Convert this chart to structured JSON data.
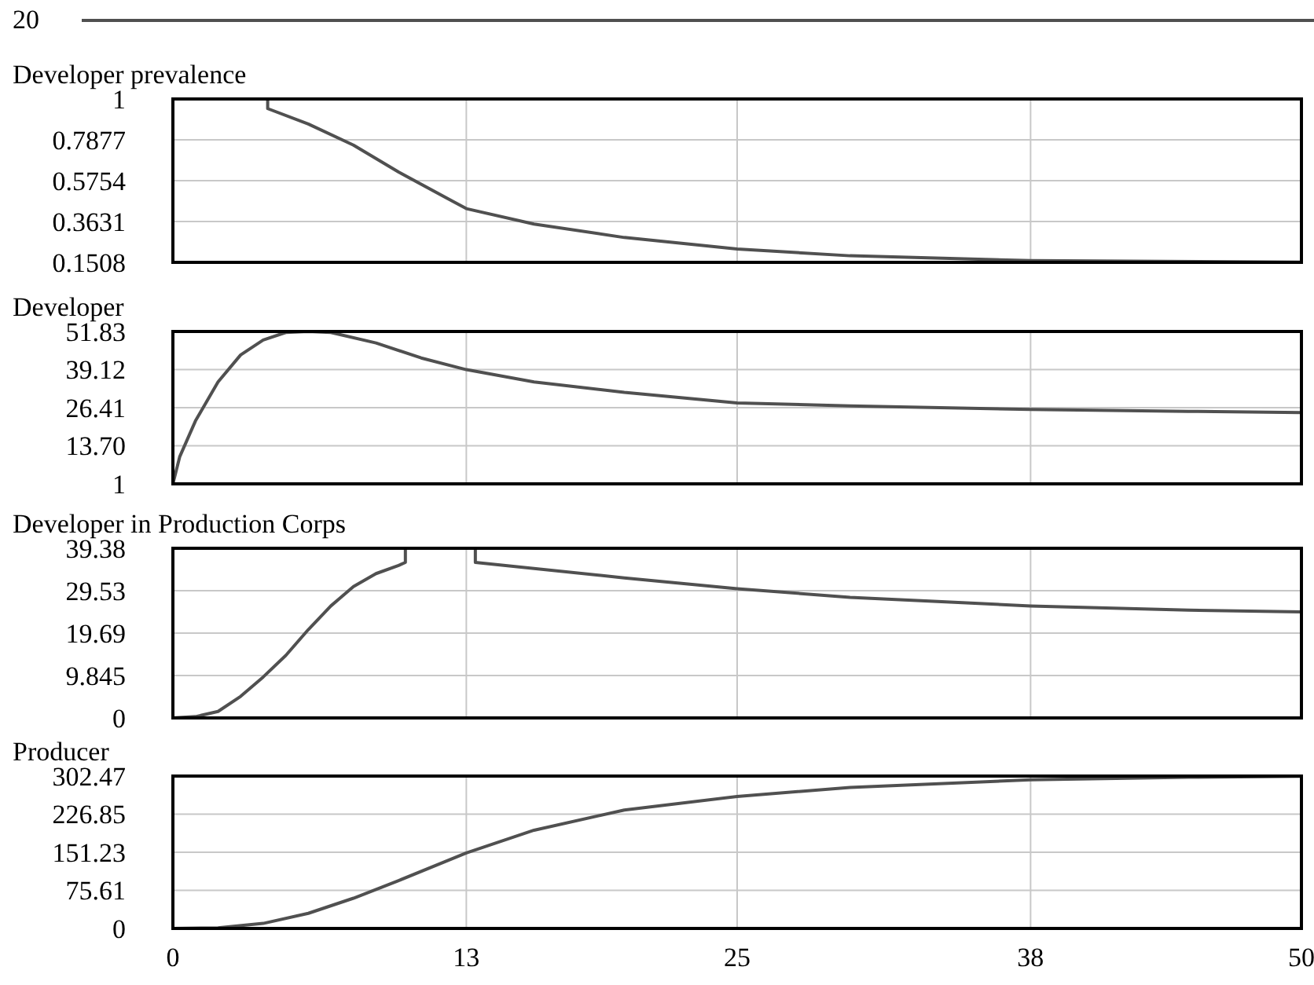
{
  "chart_data": [
    {
      "type": "line",
      "title": "Developer prevalence",
      "annotations": [
        "20"
      ],
      "xlim": [
        0,
        50
      ],
      "xticks": [
        0,
        13,
        25,
        38,
        50
      ],
      "ylim": [
        0.1508,
        1
      ],
      "yticks": [
        0.1508,
        0.3631,
        0.5754,
        0.7877,
        1
      ],
      "grid": true,
      "tick_labels": "y",
      "series": [
        {
          "color": "#505050",
          "x": [
            0,
            4.2,
            4.2,
            6,
            8,
            10,
            13,
            16,
            20,
            25,
            30,
            38,
            50
          ],
          "values": [
            1,
            1,
            0.95,
            0.87,
            0.76,
            0.62,
            0.43,
            0.35,
            0.28,
            0.22,
            0.185,
            0.16,
            0.152
          ]
        }
      ]
    },
    {
      "type": "line",
      "title": "Developer",
      "xlim": [
        0,
        50
      ],
      "xticks": [
        0,
        13,
        25,
        38,
        50
      ],
      "ylim": [
        1,
        51.83
      ],
      "yticks": [
        1,
        {
          "value": 13.7,
          "label": "13.70"
        },
        26.41,
        39.12,
        51.83
      ],
      "grid": true,
      "tick_labels": "y",
      "series": [
        {
          "color": "#505050",
          "x": [
            0,
            0.3,
            1,
            2,
            3,
            4,
            5,
            6,
            7,
            9,
            11,
            13,
            16,
            20,
            25,
            30,
            38,
            45,
            50
          ],
          "values": [
            1,
            10,
            22,
            35,
            44,
            49,
            51.5,
            51.83,
            51.5,
            48,
            43,
            39.1,
            35,
            31.5,
            28,
            27,
            25.8,
            25.2,
            24.8
          ]
        }
      ]
    },
    {
      "type": "line",
      "title": "Developer in Production Corps",
      "xlim": [
        0,
        50
      ],
      "xticks": [
        0,
        13,
        25,
        38,
        50
      ],
      "ylim": [
        0,
        39.38
      ],
      "yticks": [
        0,
        9.845,
        19.69,
        29.53,
        39.38
      ],
      "grid": true,
      "tick_labels": "y",
      "series": [
        {
          "color": "#505050",
          "x": [
            0,
            1,
            2,
            3,
            4,
            5,
            6,
            7,
            8,
            9,
            10,
            10.3,
            10.3,
            13.4,
            13.4,
            20,
            25,
            30,
            38,
            45,
            50
          ],
          "values": [
            0,
            0.3,
            1.5,
            5,
            9.5,
            14.5,
            20.5,
            26,
            30.5,
            33.5,
            35.4,
            36.1,
            39.38,
            39.38,
            36.1,
            32.5,
            30,
            28,
            26,
            25,
            24.6
          ]
        }
      ]
    },
    {
      "type": "line",
      "title": "Producer",
      "xlim": [
        0,
        50
      ],
      "xticks": [
        0,
        13,
        25,
        38,
        50
      ],
      "ylim": [
        0,
        302.47
      ],
      "yticks": [
        0,
        75.61,
        151.23,
        226.85,
        302.47
      ],
      "grid": true,
      "series": [
        {
          "color": "#505050",
          "x": [
            0,
            2,
            4,
            6,
            8,
            10,
            13,
            16,
            20,
            25,
            30,
            38,
            45,
            50
          ],
          "values": [
            0,
            1,
            10,
            30,
            60,
            95,
            150,
            195,
            235,
            262,
            280,
            295,
            300,
            302
          ]
        }
      ]
    }
  ]
}
